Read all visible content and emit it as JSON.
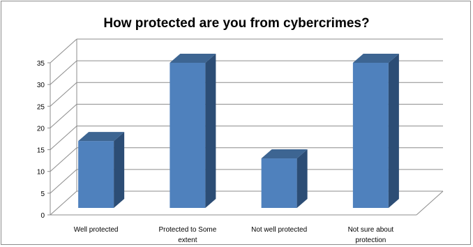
{
  "chart_data": {
    "type": "bar",
    "title": "How protected are you from cybercrimes?",
    "xlabel": "",
    "ylabel": "",
    "categories": [
      "Well protected",
      "Protected to Some extent",
      "Not well protected",
      "Not sure about protection"
    ],
    "category_lines": [
      [
        "Well protected"
      ],
      [
        "Protected to Some",
        "extent"
      ],
      [
        "Not well protected"
      ],
      [
        "Not sure about",
        "protection"
      ]
    ],
    "values": [
      17,
      35,
      13,
      35
    ],
    "ylim": [
      0,
      35
    ],
    "yticks": [
      "0",
      "5",
      "10",
      "15",
      "20",
      "25",
      "30",
      "35"
    ],
    "grid": true,
    "legend": "none",
    "style": "3d-column",
    "colors": {
      "bar_front": "#4f81bd",
      "bar_side": "#2c4d75",
      "bar_top": "#3d6592",
      "gridline": "#8c8c8c",
      "wall": "#ffffff"
    }
  }
}
